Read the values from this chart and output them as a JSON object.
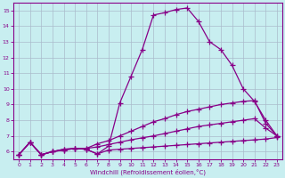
{
  "xlabel": "Windchill (Refroidissement éolien,°C)",
  "xlim": [
    -0.5,
    23.5
  ],
  "ylim": [
    5.5,
    15.5
  ],
  "xticks": [
    0,
    1,
    2,
    3,
    4,
    5,
    6,
    7,
    8,
    9,
    10,
    11,
    12,
    13,
    14,
    15,
    16,
    17,
    18,
    19,
    20,
    21,
    22,
    23
  ],
  "yticks": [
    6,
    7,
    8,
    9,
    10,
    11,
    12,
    13,
    14,
    15
  ],
  "background_color": "#c8eef0",
  "grid_color": "#aabbcc",
  "line_color": "#880088",
  "line_width": 0.9,
  "marker": "+",
  "marker_size": 4,
  "curves": [
    [
      5.8,
      6.6,
      5.8,
      6.0,
      6.15,
      6.2,
      6.15,
      5.85,
      6.35,
      9.1,
      10.8,
      12.5,
      14.7,
      14.85,
      15.05,
      15.15,
      14.3,
      13.0,
      12.5,
      11.5,
      10.0,
      9.2,
      8.0,
      7.0
    ],
    [
      5.8,
      6.6,
      5.8,
      6.0,
      6.15,
      6.2,
      6.2,
      6.5,
      6.7,
      7.0,
      7.3,
      7.6,
      7.9,
      8.1,
      8.35,
      8.55,
      8.7,
      8.85,
      9.0,
      9.1,
      9.2,
      9.25,
      7.8,
      7.0
    ],
    [
      5.8,
      6.6,
      5.8,
      6.0,
      6.1,
      6.2,
      6.2,
      6.3,
      6.45,
      6.6,
      6.75,
      6.88,
      7.0,
      7.15,
      7.3,
      7.45,
      7.6,
      7.7,
      7.8,
      7.9,
      8.0,
      8.1,
      7.5,
      7.0
    ],
    [
      5.8,
      6.6,
      5.8,
      6.0,
      6.1,
      6.2,
      6.15,
      5.85,
      6.1,
      6.15,
      6.2,
      6.25,
      6.3,
      6.35,
      6.4,
      6.45,
      6.5,
      6.55,
      6.6,
      6.65,
      6.7,
      6.75,
      6.8,
      6.9
    ]
  ]
}
